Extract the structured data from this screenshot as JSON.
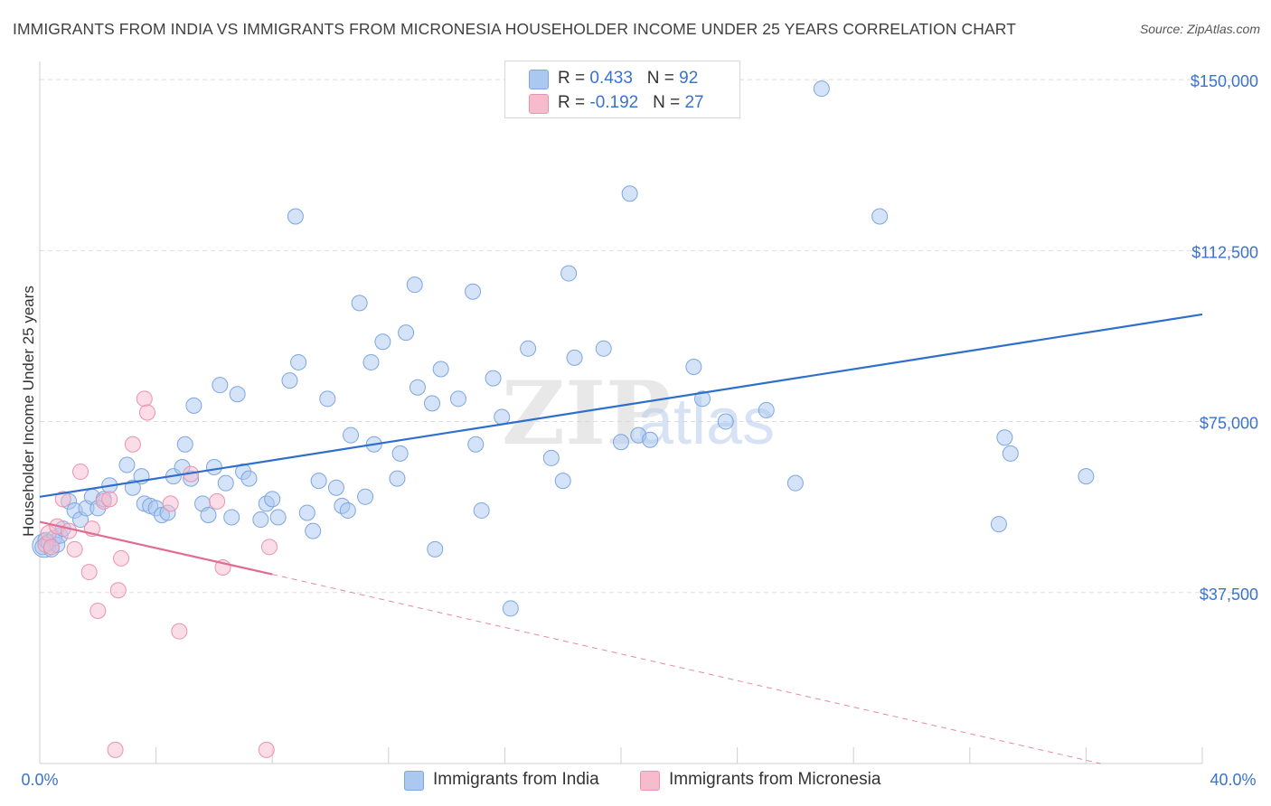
{
  "title": "IMMIGRANTS FROM INDIA VS IMMIGRANTS FROM MICRONESIA HOUSEHOLDER INCOME UNDER 25 YEARS CORRELATION CHART",
  "source": "Source: ZipAtlas.com",
  "watermark": {
    "zip": "ZIP",
    "atlas": "atlas"
  },
  "legend": {
    "india": {
      "r_label": "R = ",
      "r_value": "0.433",
      "n_label": "N = ",
      "n_value": "92"
    },
    "micronesia": {
      "r_label": "R = ",
      "r_value": "-0.192",
      "n_label": "N = ",
      "n_value": "27"
    }
  },
  "colors": {
    "india_fill": "#aac8f0",
    "india_stroke": "#7da6e0",
    "india_line": "#2f6fcc",
    "micronesia_fill": "#f6bccd",
    "micronesia_stroke": "#eb92ad",
    "micronesia_line": "#e06b94",
    "tick_label": "#3a72d0",
    "grid": "#dddddd"
  },
  "chart_data": {
    "type": "scatter",
    "title": "IMMIGRANTS FROM INDIA VS IMMIGRANTS FROM MICRONESIA HOUSEHOLDER INCOME UNDER 25 YEARS CORRELATION CHART",
    "xlabel": "",
    "ylabel": "Householder Income Under 25 years",
    "xlim": [
      0,
      40
    ],
    "ylim": [
      0,
      152000
    ],
    "x_tick_labels": [
      "0.0%",
      "40.0%"
    ],
    "y_ticks": [
      37500,
      75000,
      112500,
      150000
    ],
    "y_tick_labels": [
      "$37,500",
      "$75,000",
      "$112,500",
      "$150,000"
    ],
    "grid": true,
    "series": [
      {
        "name": "Immigrants from India",
        "points": [
          [
            0.1,
            47500
          ],
          [
            0.2,
            49000
          ],
          [
            0.3,
            48500
          ],
          [
            0.4,
            47000
          ],
          [
            0.5,
            49500
          ],
          [
            0.6,
            48000
          ],
          [
            0.7,
            50000
          ],
          [
            0.8,
            51500
          ],
          [
            1.0,
            57500
          ],
          [
            1.2,
            55500
          ],
          [
            1.4,
            53500
          ],
          [
            1.6,
            56000
          ],
          [
            1.8,
            58500
          ],
          [
            2.0,
            56000
          ],
          [
            2.2,
            58000
          ],
          [
            2.4,
            61000
          ],
          [
            3.0,
            65500
          ],
          [
            3.2,
            60500
          ],
          [
            3.5,
            63000
          ],
          [
            3.6,
            57000
          ],
          [
            3.8,
            56500
          ],
          [
            4.0,
            56000
          ],
          [
            4.2,
            54500
          ],
          [
            4.4,
            55000
          ],
          [
            4.6,
            63000
          ],
          [
            4.9,
            65000
          ],
          [
            5.0,
            70000
          ],
          [
            5.2,
            62500
          ],
          [
            5.3,
            78500
          ],
          [
            5.6,
            57000
          ],
          [
            5.8,
            54500
          ],
          [
            6.0,
            65000
          ],
          [
            6.2,
            83000
          ],
          [
            6.4,
            61500
          ],
          [
            6.6,
            54000
          ],
          [
            6.8,
            81000
          ],
          [
            7.0,
            64000
          ],
          [
            7.2,
            62500
          ],
          [
            7.6,
            53500
          ],
          [
            7.8,
            57000
          ],
          [
            8.0,
            58000
          ],
          [
            8.2,
            54000
          ],
          [
            8.6,
            84000
          ],
          [
            8.8,
            120000
          ],
          [
            8.9,
            88000
          ],
          [
            9.2,
            55000
          ],
          [
            9.4,
            51000
          ],
          [
            9.6,
            62000
          ],
          [
            9.9,
            80000
          ],
          [
            10.2,
            60500
          ],
          [
            10.4,
            56500
          ],
          [
            10.6,
            55500
          ],
          [
            10.7,
            72000
          ],
          [
            11.0,
            101000
          ],
          [
            11.2,
            58500
          ],
          [
            11.4,
            88000
          ],
          [
            11.5,
            70000
          ],
          [
            11.8,
            92500
          ],
          [
            12.3,
            62500
          ],
          [
            12.4,
            68000
          ],
          [
            12.6,
            94500
          ],
          [
            12.9,
            105000
          ],
          [
            13.0,
            82500
          ],
          [
            13.5,
            79000
          ],
          [
            13.6,
            47000
          ],
          [
            13.8,
            86500
          ],
          [
            14.4,
            80000
          ],
          [
            14.9,
            103500
          ],
          [
            15.0,
            70000
          ],
          [
            15.2,
            55500
          ],
          [
            15.6,
            84500
          ],
          [
            15.9,
            76000
          ],
          [
            16.2,
            34000
          ],
          [
            16.8,
            91000
          ],
          [
            17.6,
            67000
          ],
          [
            18.0,
            62000
          ],
          [
            18.2,
            107500
          ],
          [
            18.4,
            89000
          ],
          [
            19.4,
            91000
          ],
          [
            20.0,
            70500
          ],
          [
            20.3,
            125000
          ],
          [
            20.6,
            72000
          ],
          [
            21.0,
            71000
          ],
          [
            22.5,
            87000
          ],
          [
            22.8,
            80000
          ],
          [
            23.6,
            75000
          ],
          [
            25.0,
            77500
          ],
          [
            26.0,
            61500
          ],
          [
            26.9,
            148000
          ],
          [
            28.9,
            120000
          ],
          [
            33.0,
            52500
          ],
          [
            33.2,
            71500
          ],
          [
            33.4,
            68000
          ],
          [
            36.0,
            63000
          ]
        ]
      },
      {
        "name": "Immigrants from Micronesia",
        "points": [
          [
            0.2,
            48000
          ],
          [
            0.3,
            50500
          ],
          [
            0.4,
            47500
          ],
          [
            0.6,
            52000
          ],
          [
            0.8,
            58000
          ],
          [
            1.0,
            51000
          ],
          [
            1.2,
            47000
          ],
          [
            1.4,
            64000
          ],
          [
            1.7,
            42000
          ],
          [
            1.8,
            51500
          ],
          [
            2.0,
            33500
          ],
          [
            2.2,
            57500
          ],
          [
            2.4,
            58000
          ],
          [
            2.6,
            3000
          ],
          [
            2.7,
            38000
          ],
          [
            2.8,
            45000
          ],
          [
            3.2,
            70000
          ],
          [
            3.6,
            80000
          ],
          [
            3.7,
            77000
          ],
          [
            4.5,
            57000
          ],
          [
            4.8,
            29000
          ],
          [
            5.2,
            63500
          ],
          [
            6.1,
            57500
          ],
          [
            6.3,
            43000
          ],
          [
            7.8,
            3000
          ],
          [
            7.9,
            47500
          ]
        ]
      }
    ],
    "trend_lines": [
      {
        "series": "Immigrants from India",
        "x": [
          0,
          40
        ],
        "y": [
          58500,
          98500
        ],
        "style": "solid"
      },
      {
        "series": "Immigrants from Micronesia",
        "x": [
          0,
          8
        ],
        "y": [
          53000,
          41500
        ],
        "style": "solid"
      },
      {
        "series": "Immigrants from Micronesia",
        "x": [
          8,
          36.5
        ],
        "y": [
          41500,
          0
        ],
        "style": "dashed"
      }
    ]
  },
  "bottom_legend": {
    "india_label": "Immigrants from India",
    "micronesia_label": "Immigrants from Micronesia"
  }
}
